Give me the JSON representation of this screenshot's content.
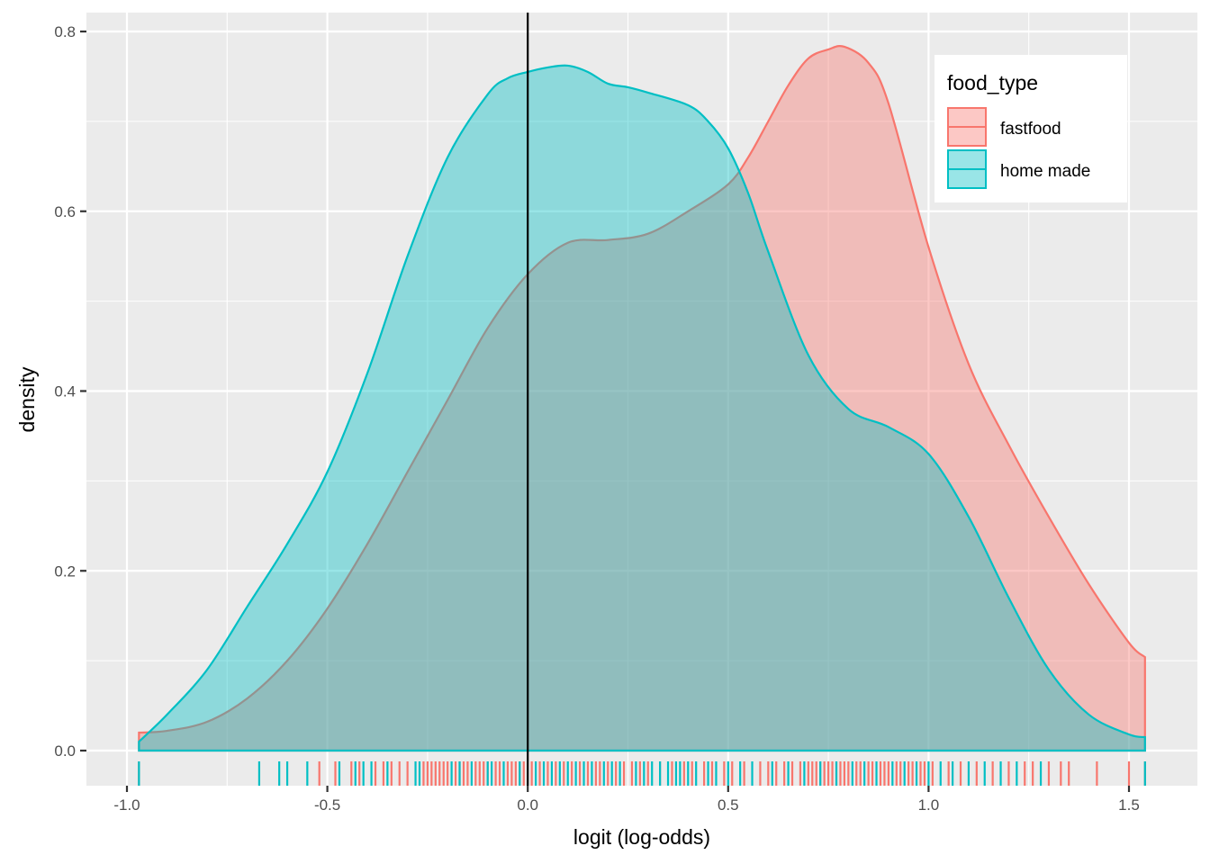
{
  "chart_data": {
    "type": "area",
    "subtype": "density",
    "title": "",
    "xlabel": "logit (log-odds)",
    "ylabel": "density",
    "xlim": [
      -1.0,
      1.55
    ],
    "ylim": [
      -0.03,
      0.82
    ],
    "x_ticks": [
      {
        "value": -1.0,
        "label": "-1.0"
      },
      {
        "value": -0.5,
        "label": "-0.5"
      },
      {
        "value": 0.0,
        "label": "0.0"
      },
      {
        "value": 0.5,
        "label": "0.5"
      },
      {
        "value": 1.0,
        "label": "1.0"
      },
      {
        "value": 1.5,
        "label": "1.5"
      }
    ],
    "y_ticks": [
      {
        "value": 0.0,
        "label": "0.0"
      },
      {
        "value": 0.2,
        "label": "0.2"
      },
      {
        "value": 0.4,
        "label": "0.4"
      },
      {
        "value": 0.6,
        "label": "0.6"
      },
      {
        "value": 0.8,
        "label": "0.8"
      }
    ],
    "vline_x": 0.0,
    "grid": true,
    "legend": {
      "title": "food_type",
      "position": "top-right",
      "entries": [
        "fastfood",
        "home made"
      ]
    },
    "series": [
      {
        "name": "fastfood",
        "color": "#F8766D",
        "fill": "#F8766D",
        "fill_opacity": 0.4,
        "x": [
          -0.97,
          -0.9,
          -0.8,
          -0.7,
          -0.6,
          -0.5,
          -0.4,
          -0.3,
          -0.2,
          -0.1,
          0.0,
          0.1,
          0.2,
          0.3,
          0.4,
          0.5,
          0.55,
          0.6,
          0.65,
          0.7,
          0.75,
          0.79,
          0.85,
          0.9,
          1.0,
          1.1,
          1.2,
          1.3,
          1.4,
          1.5,
          1.54
        ],
        "y": [
          0.02,
          0.022,
          0.032,
          0.058,
          0.1,
          0.158,
          0.23,
          0.31,
          0.39,
          0.47,
          0.53,
          0.565,
          0.568,
          0.575,
          0.6,
          0.63,
          0.66,
          0.7,
          0.74,
          0.77,
          0.78,
          0.783,
          0.765,
          0.72,
          0.56,
          0.43,
          0.34,
          0.26,
          0.185,
          0.12,
          0.104
        ],
        "rug_x": [
          -0.97,
          -0.52,
          -0.48,
          -0.44,
          -0.42,
          -0.38,
          -0.36,
          -0.34,
          -0.32,
          -0.3,
          -0.26,
          -0.25,
          -0.24,
          -0.23,
          -0.22,
          -0.21,
          -0.2,
          -0.18,
          -0.17,
          -0.16,
          -0.15,
          -0.13,
          -0.12,
          -0.11,
          -0.1,
          -0.08,
          -0.07,
          -0.05,
          -0.04,
          -0.03,
          -0.02,
          -0.01,
          0.01,
          0.03,
          0.05,
          0.07,
          0.09,
          0.11,
          0.13,
          0.15,
          0.17,
          0.18,
          0.2,
          0.22,
          0.24,
          0.26,
          0.28,
          0.3,
          0.33,
          0.36,
          0.39,
          0.41,
          0.44,
          0.46,
          0.49,
          0.51,
          0.54,
          0.58,
          0.6,
          0.62,
          0.64,
          0.66,
          0.68,
          0.7,
          0.71,
          0.72,
          0.73,
          0.74,
          0.75,
          0.76,
          0.77,
          0.78,
          0.79,
          0.8,
          0.82,
          0.83,
          0.85,
          0.86,
          0.88,
          0.89,
          0.9,
          0.92,
          0.93,
          0.95,
          0.96,
          0.98,
          0.99,
          1.01,
          1.05,
          1.08,
          1.12,
          1.16,
          1.2,
          1.24,
          1.26,
          1.3,
          1.33,
          1.35,
          1.42,
          1.5,
          1.54
        ]
      },
      {
        "name": "home made",
        "color": "#00BFC4",
        "fill": "#00BFC4",
        "fill_opacity": 0.4,
        "x": [
          -0.97,
          -0.9,
          -0.8,
          -0.7,
          -0.6,
          -0.5,
          -0.4,
          -0.3,
          -0.2,
          -0.1,
          -0.05,
          0.0,
          0.05,
          0.1,
          0.15,
          0.2,
          0.25,
          0.3,
          0.4,
          0.45,
          0.5,
          0.55,
          0.6,
          0.7,
          0.8,
          0.9,
          1.0,
          1.1,
          1.2,
          1.3,
          1.4,
          1.5,
          1.54
        ],
        "y": [
          0.01,
          0.04,
          0.09,
          0.16,
          0.23,
          0.31,
          0.42,
          0.55,
          0.66,
          0.73,
          0.748,
          0.755,
          0.76,
          0.762,
          0.755,
          0.742,
          0.738,
          0.732,
          0.718,
          0.7,
          0.67,
          0.62,
          0.555,
          0.44,
          0.38,
          0.36,
          0.33,
          0.26,
          0.17,
          0.09,
          0.04,
          0.018,
          0.015
        ],
        "rug_x": [
          -0.97,
          -0.67,
          -0.62,
          -0.6,
          -0.55,
          -0.47,
          -0.43,
          -0.41,
          -0.39,
          -0.35,
          -0.28,
          -0.27,
          -0.19,
          -0.17,
          -0.14,
          -0.1,
          -0.09,
          -0.06,
          -0.02,
          0.02,
          0.04,
          0.06,
          0.08,
          0.1,
          0.12,
          0.14,
          0.16,
          0.19,
          0.21,
          0.23,
          0.27,
          0.29,
          0.31,
          0.33,
          0.35,
          0.37,
          0.38,
          0.4,
          0.42,
          0.45,
          0.47,
          0.5,
          0.53,
          0.56,
          0.61,
          0.65,
          0.69,
          0.73,
          0.77,
          0.81,
          0.84,
          0.87,
          0.91,
          0.94,
          0.97,
          1.0,
          1.03,
          1.06,
          1.1,
          1.14,
          1.18,
          1.22,
          1.28,
          1.54
        ]
      }
    ]
  }
}
